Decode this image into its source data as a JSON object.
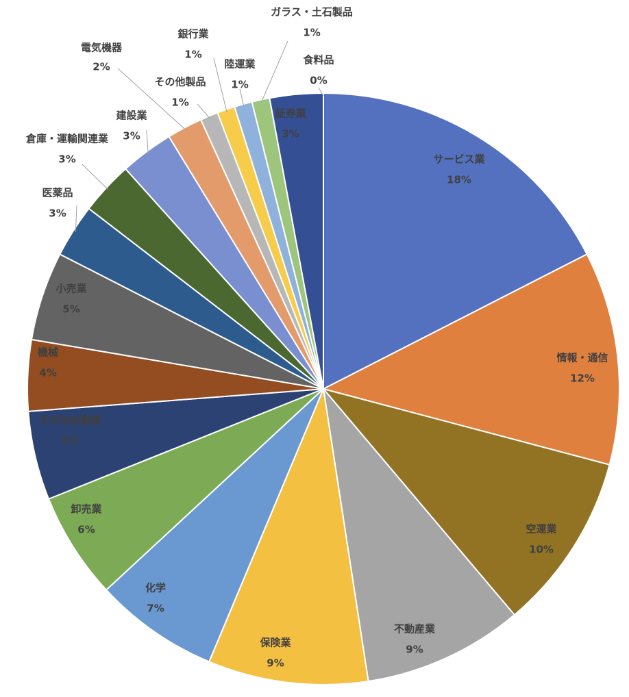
{
  "chart_data": {
    "type": "pie",
    "categories": [
      "サービス業",
      "情報・通信",
      "空運業",
      "不動産業",
      "保険業",
      "化学",
      "卸売業",
      "その他金融業",
      "機械",
      "小売業",
      "医薬品",
      "倉庫・運輸関連業",
      "建設業",
      "電気機器",
      "その他製品",
      "銀行業",
      "陸運業",
      "ガラス・土石製品",
      "証券業",
      "食料品"
    ],
    "values": [
      18,
      12,
      10,
      9,
      9,
      7,
      6,
      5,
      4,
      5,
      3,
      3,
      3,
      2,
      1,
      1,
      1,
      1,
      3,
      0
    ],
    "value_labels": [
      "18%",
      "12%",
      "10%",
      "9%",
      "9%",
      "7%",
      "6%",
      "5%",
      "4%",
      "5%",
      "3%",
      "3%",
      "3%",
      "2%",
      "1%",
      "1%",
      "1%",
      "1%",
      "3%",
      "0%"
    ],
    "colors": [
      "#5371bf",
      "#e0803f",
      "#917323",
      "#a5a5a5",
      "#f4c042",
      "#6a98d0",
      "#7dab55",
      "#2c4272",
      "#944c21",
      "#636363",
      "#2e5b8e",
      "#4a6830",
      "#7a8fd0",
      "#e49b6c",
      "#b7b7b7",
      "#f7cc4a",
      "#8fb2dc",
      "#9dc57c",
      "#344f93",
      "#c86a2a"
    ]
  }
}
